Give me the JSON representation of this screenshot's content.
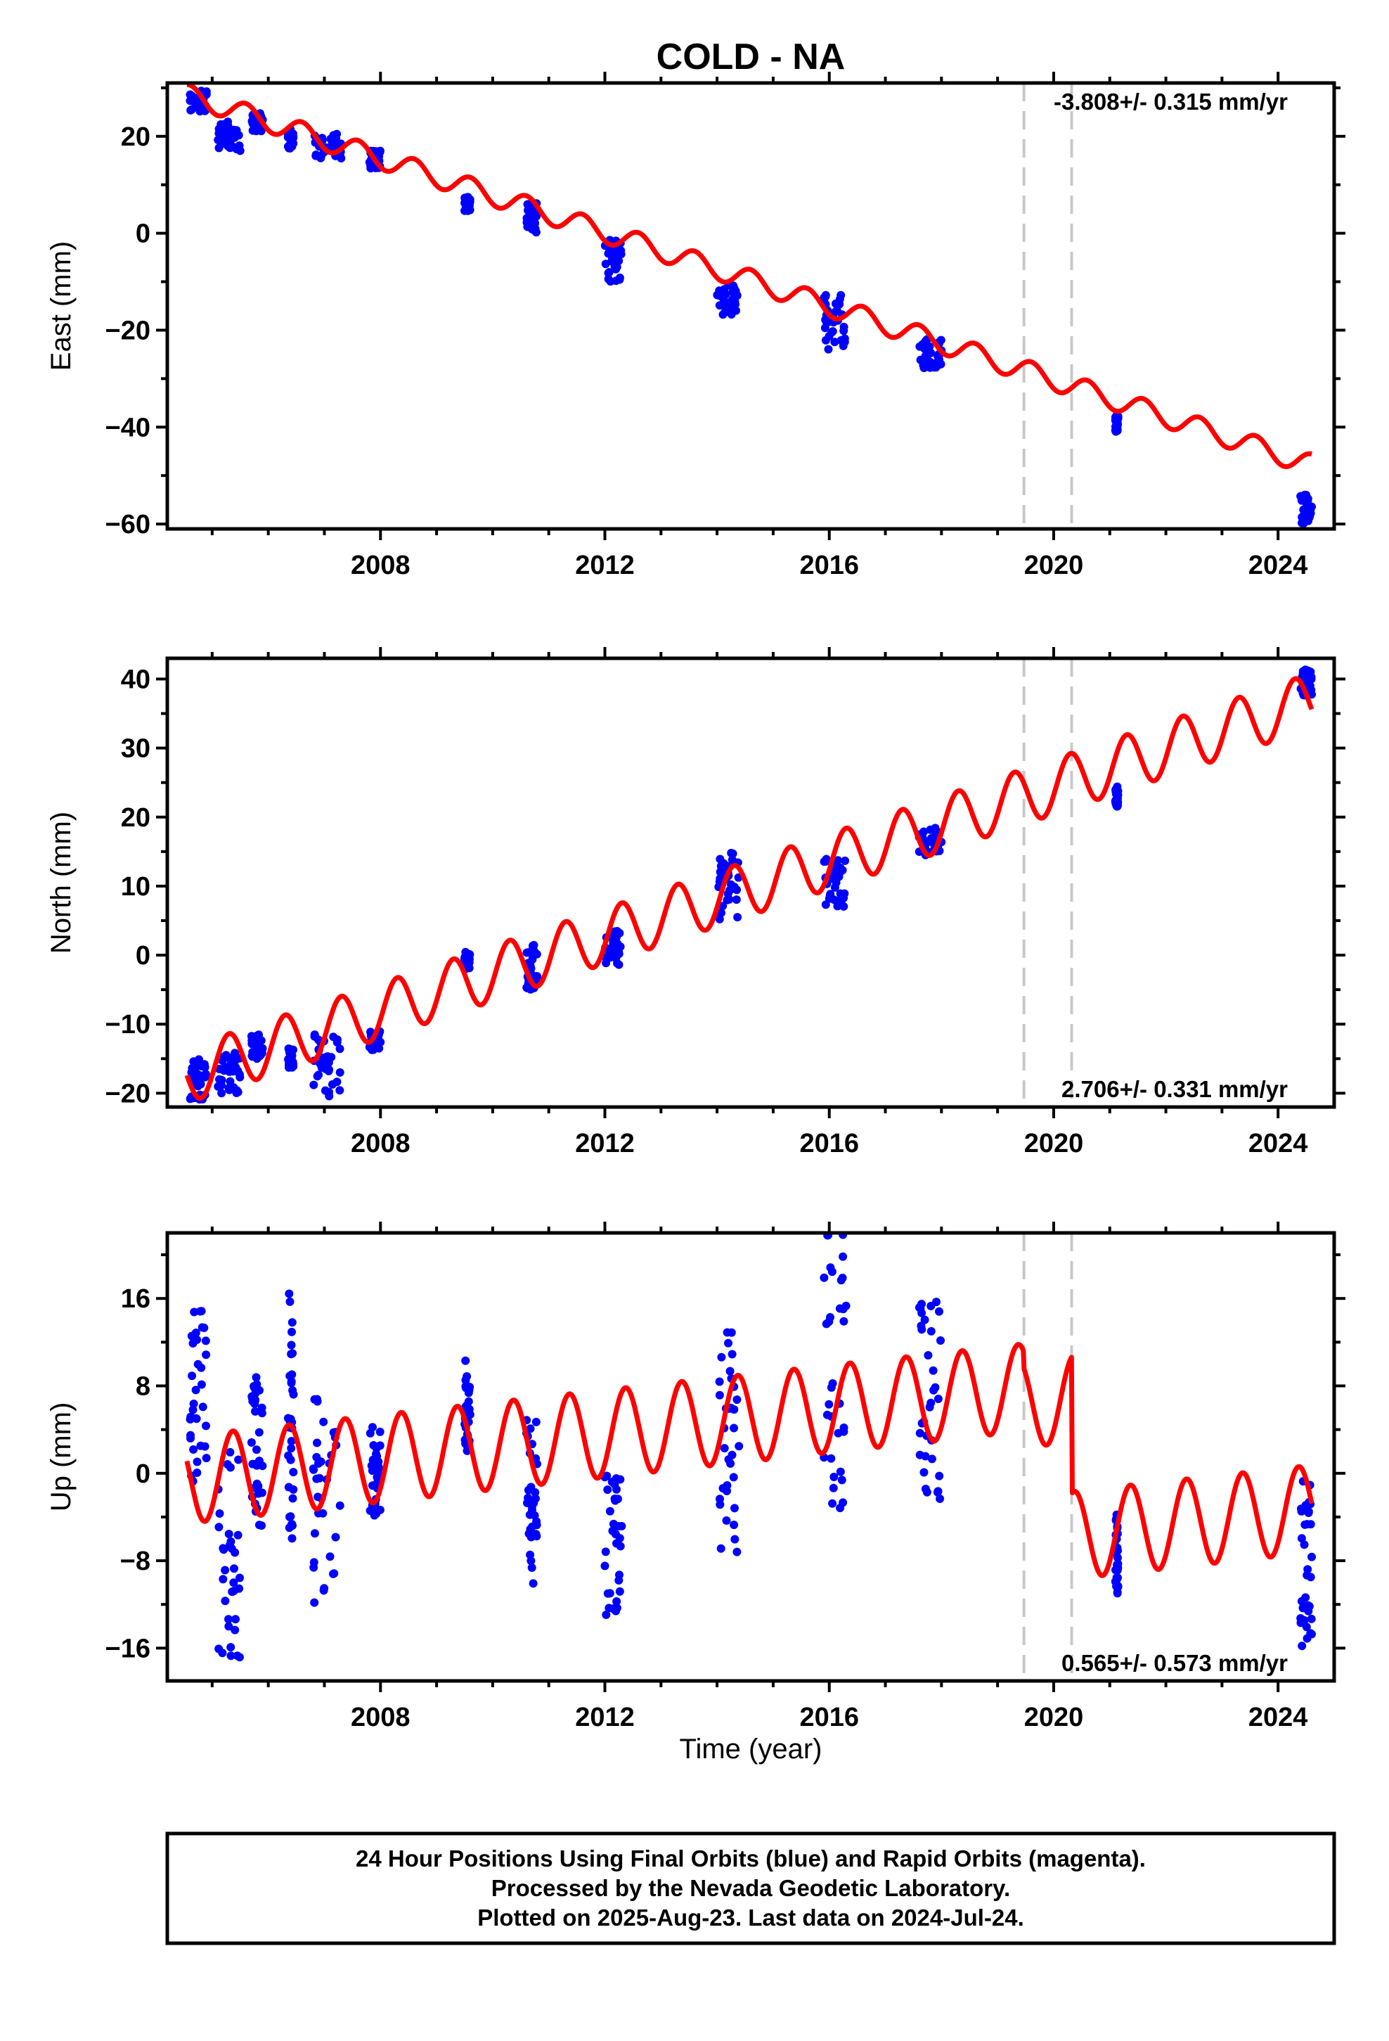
{
  "title": "COLD - NA",
  "xlabel": "Time (year)",
  "caption": [
    "24 Hour Positions Using Final Orbits (blue) and Rapid Orbits (magenta).",
    "Processed by the Nevada Geodetic Laboratory.",
    "Plotted on 2025-Aug-23. Last data on 2024-Jul-24."
  ],
  "colors": {
    "data": "#0000ff",
    "model": "#ff0000",
    "events": "#c8c8c8",
    "frame": "#000000"
  },
  "chart_data": [
    {
      "type": "scatter",
      "component": "east",
      "ylabel": "East (mm)",
      "rate_label": "-3.808+/- 0.315 mm/yr",
      "rate_position": "top-right",
      "xlim": [
        2004.2,
        2025.0
      ],
      "ylim": [
        -61,
        31
      ],
      "xticks": [
        2008,
        2012,
        2016,
        2020,
        2024
      ],
      "yticks": [
        -60,
        -40,
        -20,
        0,
        20
      ],
      "event_lines": [
        2019.47,
        2020.32
      ],
      "data_clusters": [
        {
          "x": [
            2004.6,
            2004.9
          ],
          "y": [
            25,
            29.5
          ]
        },
        {
          "x": [
            2005.1,
            2005.5
          ],
          "y": [
            17,
            23
          ]
        },
        {
          "x": [
            2005.7,
            2005.9
          ],
          "y": [
            21,
            25
          ]
        },
        {
          "x": [
            2006.35,
            2006.45
          ],
          "y": [
            17.5,
            21.5
          ]
        },
        {
          "x": [
            2006.8,
            2007.3
          ],
          "y": [
            15,
            20.5
          ]
        },
        {
          "x": [
            2007.8,
            2008.0
          ],
          "y": [
            13,
            17
          ]
        },
        {
          "x": [
            2009.5,
            2009.6
          ],
          "y": [
            4.5,
            7.5
          ]
        },
        {
          "x": [
            2010.6,
            2010.8
          ],
          "y": [
            0,
            6.5
          ]
        },
        {
          "x": [
            2012.0,
            2012.3
          ],
          "y": [
            -10,
            -1
          ]
        },
        {
          "x": [
            2014.0,
            2014.4
          ],
          "y": [
            -17,
            -10.5
          ]
        },
        {
          "x": [
            2015.9,
            2016.3
          ],
          "y": [
            -24,
            -12
          ]
        },
        {
          "x": [
            2017.6,
            2018.0
          ],
          "y": [
            -28,
            -21.5
          ]
        },
        {
          "x": [
            2021.1,
            2021.15
          ],
          "y": [
            -41,
            -37.5
          ]
        },
        {
          "x": [
            2024.4,
            2024.6
          ],
          "y": [
            -60,
            -54
          ]
        }
      ],
      "model": {
        "intercept_2004_7": 28.0,
        "rate": -3.808,
        "annual_amp": 2.2,
        "annual_phase": 0.35,
        "steps": []
      }
    },
    {
      "type": "scatter",
      "component": "north",
      "ylabel": "North (mm)",
      "rate_label": "2.706+/- 0.331 mm/yr",
      "rate_position": "bottom-right",
      "xlim": [
        2004.2,
        2025.0
      ],
      "ylim": [
        -22,
        43
      ],
      "xticks": [
        2008,
        2012,
        2016,
        2020,
        2024
      ],
      "yticks": [
        -20,
        -10,
        0,
        10,
        20,
        30,
        40
      ],
      "event_lines": [
        2019.47,
        2020.32
      ],
      "data_clusters": [
        {
          "x": [
            2004.6,
            2004.9
          ],
          "y": [
            -21,
            -15
          ]
        },
        {
          "x": [
            2005.1,
            2005.5
          ],
          "y": [
            -20,
            -14
          ]
        },
        {
          "x": [
            2005.7,
            2005.9
          ],
          "y": [
            -15,
            -11.5
          ]
        },
        {
          "x": [
            2006.35,
            2006.45
          ],
          "y": [
            -16.5,
            -13.5
          ]
        },
        {
          "x": [
            2006.8,
            2007.3
          ],
          "y": [
            -20.5,
            -11.5
          ]
        },
        {
          "x": [
            2007.8,
            2008.0
          ],
          "y": [
            -14,
            -11
          ]
        },
        {
          "x": [
            2009.5,
            2009.6
          ],
          "y": [
            -2,
            0.5
          ]
        },
        {
          "x": [
            2010.6,
            2010.8
          ],
          "y": [
            -5,
            1.5
          ]
        },
        {
          "x": [
            2012.0,
            2012.3
          ],
          "y": [
            -1.5,
            3.5
          ]
        },
        {
          "x": [
            2014.0,
            2014.4
          ],
          "y": [
            5,
            16
          ]
        },
        {
          "x": [
            2015.9,
            2016.3
          ],
          "y": [
            7,
            14
          ]
        },
        {
          "x": [
            2017.6,
            2018.0
          ],
          "y": [
            14.5,
            18.5
          ]
        },
        {
          "x": [
            2021.1,
            2021.15
          ],
          "y": [
            21.5,
            24.5
          ]
        },
        {
          "x": [
            2024.4,
            2024.6
          ],
          "y": [
            37.5,
            41.5
          ]
        }
      ],
      "model": {
        "intercept_2004_7": -17.0,
        "rate": 2.706,
        "annual_amp": 4.0,
        "annual_phase": 0.05,
        "steps": []
      }
    },
    {
      "type": "scatter",
      "component": "up",
      "ylabel": "Up (mm)",
      "rate_label": "0.565+/- 0.573 mm/yr",
      "rate_position": "bottom-right",
      "xlim": [
        2004.2,
        2025.0
      ],
      "ylim": [
        -19,
        22
      ],
      "xticks": [
        2008,
        2012,
        2016,
        2020,
        2024
      ],
      "yticks": [
        -16,
        -8,
        0,
        8,
        16
      ],
      "event_lines": [
        2019.47,
        2020.32
      ],
      "data_clusters": [
        {
          "x": [
            2004.6,
            2004.9
          ],
          "y": [
            -1,
            15
          ]
        },
        {
          "x": [
            2005.1,
            2005.5
          ],
          "y": [
            -18,
            2
          ]
        },
        {
          "x": [
            2005.7,
            2005.9
          ],
          "y": [
            -5,
            9
          ]
        },
        {
          "x": [
            2006.35,
            2006.45
          ],
          "y": [
            -7,
            16.5
          ]
        },
        {
          "x": [
            2006.8,
            2007.3
          ],
          "y": [
            -12,
            7
          ]
        },
        {
          "x": [
            2007.8,
            2008.0
          ],
          "y": [
            -4,
            4.5
          ]
        },
        {
          "x": [
            2009.5,
            2009.6
          ],
          "y": [
            2,
            10.5
          ]
        },
        {
          "x": [
            2010.6,
            2010.8
          ],
          "y": [
            -11,
            5
          ]
        },
        {
          "x": [
            2012.0,
            2012.3
          ],
          "y": [
            -13,
            0
          ]
        },
        {
          "x": [
            2014.0,
            2014.4
          ],
          "y": [
            -8,
            14
          ]
        },
        {
          "x": [
            2015.9,
            2016.3
          ],
          "y": [
            -4,
            22
          ]
        },
        {
          "x": [
            2017.6,
            2018.0
          ],
          "y": [
            -3,
            17.5
          ]
        },
        {
          "x": [
            2021.1,
            2021.15
          ],
          "y": [
            -11,
            -3.5
          ]
        },
        {
          "x": [
            2024.4,
            2024.6
          ],
          "y": [
            -16,
            -0.5
          ]
        }
      ],
      "model": {
        "intercept_2004_7": -0.5,
        "rate": 0.565,
        "annual_amp": 4.0,
        "annual_phase": 0.12,
        "steps": [
          {
            "x": 2019.47,
            "dy": -1.5
          },
          {
            "x": 2020.32,
            "dy": -12.5
          }
        ]
      }
    }
  ]
}
